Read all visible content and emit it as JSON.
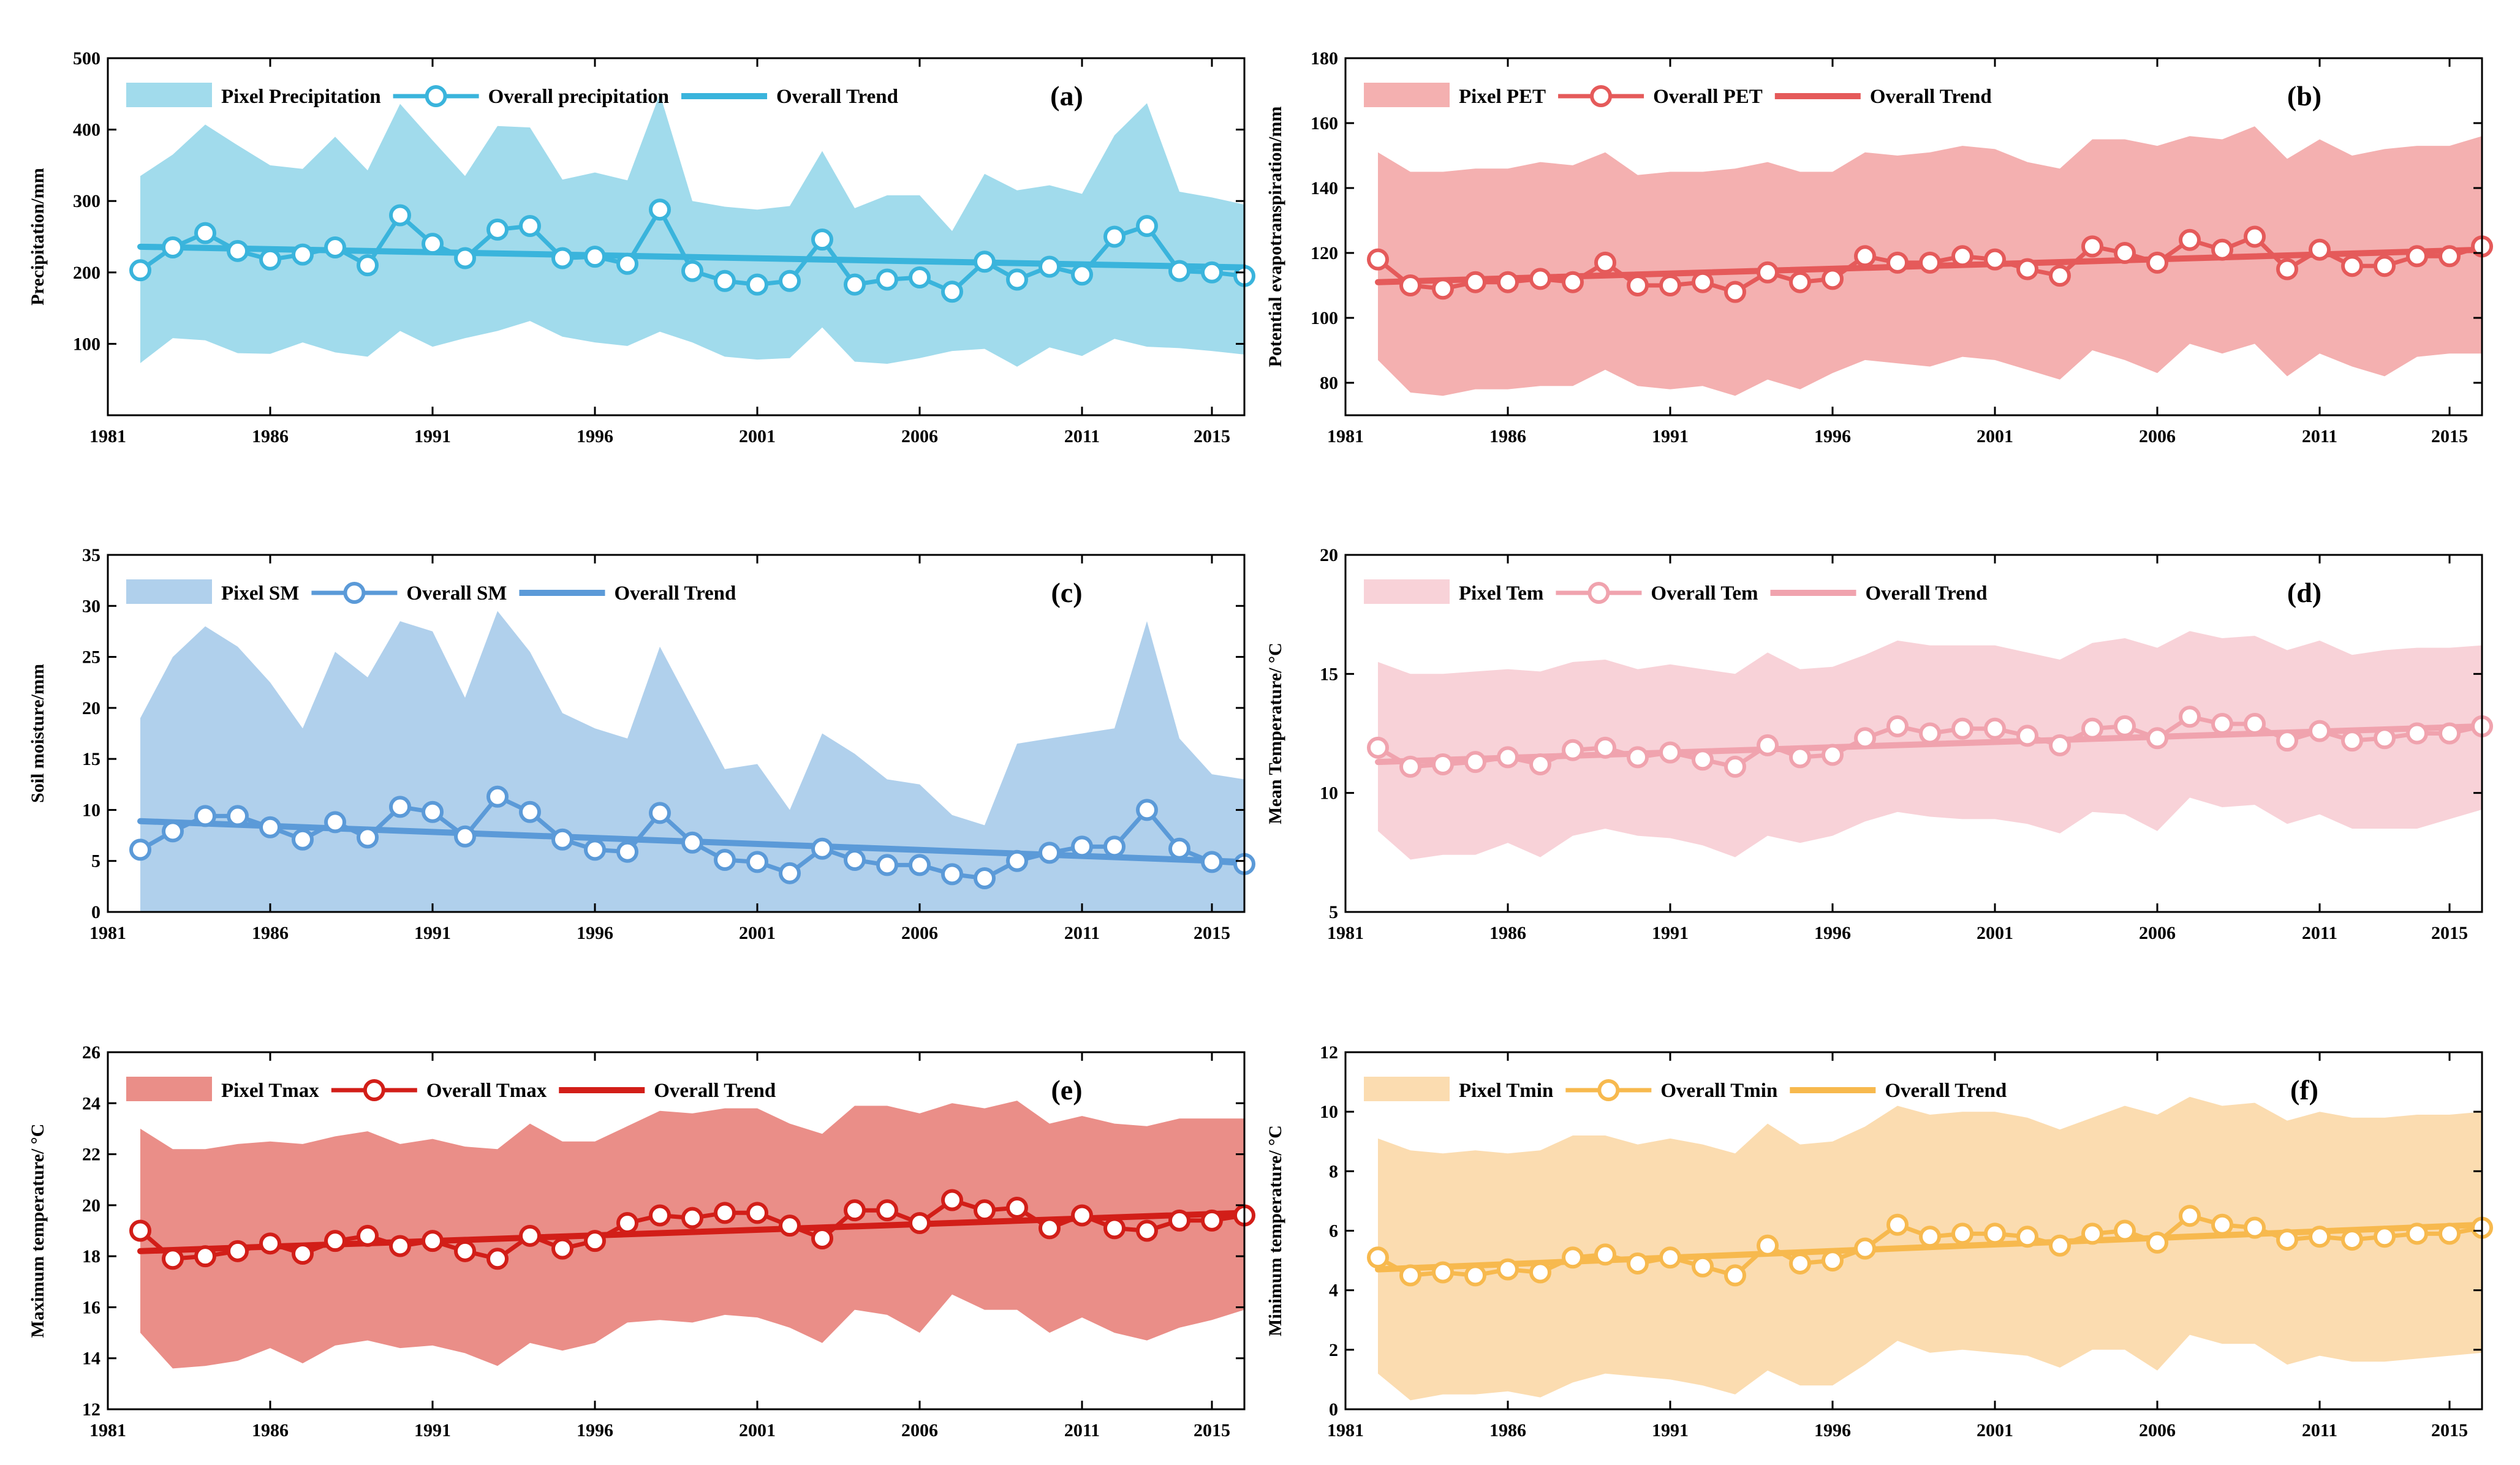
{
  "chart_data": [
    {
      "id": "a",
      "type": "line",
      "panel_label": "(a)",
      "ylabel": "Precipitation/mm",
      "xlabel": "",
      "ylim": [
        0,
        500
      ],
      "yticks": [
        100,
        200,
        300,
        400,
        500
      ],
      "ytick_labels": [
        "100",
        "200",
        "300",
        "400",
        "500"
      ],
      "xlim": [
        1981,
        2016
      ],
      "xticks": [
        1981,
        1986,
        1991,
        1996,
        2001,
        2006,
        2011,
        2015
      ],
      "xtick_labels": [
        "1981",
        "1986",
        "1991",
        "1996",
        "2001",
        "2006",
        "2011",
        "2015"
      ],
      "colors": {
        "band": "#a1dbec",
        "line": "#3ab4dc",
        "trend": "#3ab4dc"
      },
      "legend": {
        "band": "Pixel Precipitation",
        "line": "Overall precipitation",
        "trend": "Overall Trend"
      },
      "x": [
        1982,
        1983,
        1984,
        1985,
        1986,
        1987,
        1988,
        1989,
        1990,
        1991,
        1992,
        1993,
        1994,
        1995,
        1996,
        1997,
        1998,
        1999,
        2000,
        2001,
        2002,
        2003,
        2004,
        2005,
        2006,
        2007,
        2008,
        2009,
        2010,
        2011,
        2012,
        2013,
        2014,
        2015,
        2016
      ],
      "band_upper": [
        335,
        365,
        407,
        378,
        350,
        345,
        390,
        343,
        436,
        385,
        335,
        405,
        403,
        330,
        340,
        329,
        450,
        300,
        292,
        288,
        293,
        370,
        290,
        308,
        308,
        258,
        338,
        315,
        322,
        310,
        392,
        437,
        313,
        305,
        295
      ],
      "band_lower": [
        73,
        108,
        105,
        87,
        86,
        102,
        88,
        82,
        118,
        96,
        108,
        118,
        132,
        110,
        102,
        97,
        117,
        102,
        82,
        78,
        80,
        123,
        75,
        72,
        80,
        90,
        93,
        68,
        95,
        83,
        107,
        96,
        94,
        90,
        85
      ],
      "series": [
        {
          "name": "Overall precipitation",
          "values": [
            203,
            235,
            255,
            230,
            218,
            225,
            235,
            210,
            280,
            240,
            220,
            260,
            265,
            220,
            222,
            212,
            288,
            202,
            188,
            183,
            188,
            246,
            183,
            190,
            193,
            173,
            215,
            190,
            208,
            197,
            250,
            265,
            202,
            200,
            195
          ]
        }
      ],
      "trend": [
        236,
        207
      ]
    },
    {
      "id": "b",
      "type": "line",
      "panel_label": "(b)",
      "ylabel": "Potential evapotranspiration/mm",
      "xlabel": "",
      "ylim": [
        70,
        180
      ],
      "yticks": [
        80,
        100,
        120,
        140,
        160,
        180
      ],
      "ytick_labels": [
        "80",
        "100",
        "120",
        "140",
        "160",
        "180"
      ],
      "xlim": [
        1981,
        2016
      ],
      "xticks": [
        1981,
        1986,
        1991,
        1996,
        2001,
        2006,
        2011,
        2015
      ],
      "xtick_labels": [
        "1981",
        "1986",
        "1991",
        "1996",
        "2001",
        "2006",
        "2011",
        "2015"
      ],
      "colors": {
        "band": "#f4b0b0",
        "line": "#e55a5a",
        "trend": "#e55a5a"
      },
      "legend": {
        "band": "Pixel PET",
        "line": "Overall PET",
        "trend": "Overall Trend"
      },
      "x": [
        1982,
        1983,
        1984,
        1985,
        1986,
        1987,
        1988,
        1989,
        1990,
        1991,
        1992,
        1993,
        1994,
        1995,
        1996,
        1997,
        1998,
        1999,
        2000,
        2001,
        2002,
        2003,
        2004,
        2005,
        2006,
        2007,
        2008,
        2009,
        2010,
        2011,
        2012,
        2013,
        2014,
        2015,
        2016
      ],
      "band_upper": [
        151,
        145,
        145,
        146,
        146,
        148,
        147,
        151,
        144,
        145,
        145,
        146,
        148,
        145,
        145,
        151,
        150,
        151,
        153,
        152,
        148,
        146,
        155,
        155,
        153,
        156,
        155,
        159,
        149,
        155,
        150,
        152,
        153,
        153,
        156
      ],
      "band_lower": [
        87,
        77,
        76,
        78,
        78,
        79,
        79,
        84,
        79,
        78,
        79,
        76,
        81,
        78,
        83,
        87,
        86,
        85,
        88,
        87,
        84,
        81,
        90,
        87,
        83,
        92,
        89,
        92,
        82,
        89,
        85,
        82,
        88,
        89,
        89
      ],
      "series": [
        {
          "name": "Overall PET",
          "values": [
            118,
            110,
            109,
            111,
            111,
            112,
            111,
            117,
            110,
            110,
            111,
            108,
            114,
            111,
            112,
            119,
            117,
            117,
            119,
            118,
            115,
            113,
            122,
            120,
            117,
            124,
            121,
            125,
            115,
            121,
            116,
            116,
            119,
            119,
            122
          ]
        }
      ],
      "trend": [
        111,
        121
      ]
    },
    {
      "id": "c",
      "type": "line",
      "panel_label": "(c)",
      "ylabel": "Soil moisture/mm",
      "xlabel": "",
      "ylim": [
        0,
        35
      ],
      "yticks": [
        0,
        5,
        10,
        15,
        20,
        25,
        30,
        35
      ],
      "ytick_labels": [
        "0",
        "5",
        "10",
        "15",
        "20",
        "25",
        "30",
        "35"
      ],
      "xlim": [
        1981,
        2016
      ],
      "xticks": [
        1981,
        1986,
        1991,
        1996,
        2001,
        2006,
        2011,
        2015
      ],
      "xtick_labels": [
        "1981",
        "1986",
        "1991",
        "1996",
        "2001",
        "2006",
        "2011",
        "2015"
      ],
      "colors": {
        "band": "#b0d0ec",
        "line": "#5b9ad8",
        "trend": "#5b9ad8"
      },
      "legend": {
        "band": "Pixel SM",
        "line": "Overall SM",
        "trend": "Overall Trend"
      },
      "x": [
        1982,
        1983,
        1984,
        1985,
        1986,
        1987,
        1988,
        1989,
        1990,
        1991,
        1992,
        1993,
        1994,
        1995,
        1996,
        1997,
        1998,
        1999,
        2000,
        2001,
        2002,
        2003,
        2004,
        2005,
        2006,
        2007,
        2008,
        2009,
        2010,
        2011,
        2012,
        2013,
        2014,
        2015,
        2016
      ],
      "band_upper": [
        19,
        25,
        28,
        26,
        22.5,
        18,
        25.5,
        23,
        28.5,
        27.5,
        21,
        29.5,
        25.5,
        19.5,
        18,
        17,
        26,
        20,
        14,
        14.5,
        10,
        17.5,
        15.5,
        13,
        12.5,
        9.5,
        8.5,
        16.5,
        17,
        17.5,
        18,
        28.5,
        17,
        13.5,
        13
      ],
      "band_lower": [
        0,
        0,
        0,
        0,
        0,
        0,
        0,
        0,
        0,
        0,
        0,
        0,
        0,
        0,
        0,
        0,
        0,
        0,
        0,
        0,
        0,
        0,
        0,
        0,
        0,
        0,
        0,
        0,
        0,
        0,
        0,
        0,
        0,
        0,
        0
      ],
      "series": [
        {
          "name": "Overall SM",
          "values": [
            6.1,
            7.9,
            9.4,
            9.4,
            8.3,
            7.1,
            8.8,
            7.3,
            10.3,
            9.8,
            7.4,
            11.3,
            9.8,
            7.1,
            6.1,
            5.9,
            9.7,
            6.8,
            5.1,
            4.9,
            3.8,
            6.2,
            5.1,
            4.6,
            4.6,
            3.7,
            3.3,
            5.0,
            5.8,
            6.4,
            6.4,
            10.0,
            6.2,
            4.9,
            4.7
          ]
        }
      ],
      "trend": [
        8.9,
        4.9
      ]
    },
    {
      "id": "d",
      "type": "line",
      "panel_label": "(d)",
      "ylabel": "Mean Temperature/ °C",
      "xlabel": "",
      "ylim": [
        5,
        20
      ],
      "yticks": [
        5,
        10,
        15,
        20
      ],
      "ytick_labels": [
        "5",
        "10",
        "15",
        "20"
      ],
      "xlim": [
        1981,
        2016
      ],
      "xticks": [
        1981,
        1986,
        1991,
        1996,
        2001,
        2006,
        2011,
        2015
      ],
      "xtick_labels": [
        "1981",
        "1986",
        "1991",
        "1996",
        "2001",
        "2006",
        "2011",
        "2015"
      ],
      "colors": {
        "band": "#f8d2d8",
        "line": "#f0a3ae",
        "trend": "#f0a3ae"
      },
      "legend": {
        "band": "Pixel Tem",
        "line": "Overall Tem",
        "trend": "Overall Trend"
      },
      "x": [
        1982,
        1983,
        1984,
        1985,
        1986,
        1987,
        1988,
        1989,
        1990,
        1991,
        1992,
        1993,
        1994,
        1995,
        1996,
        1997,
        1998,
        1999,
        2000,
        2001,
        2002,
        2003,
        2004,
        2005,
        2006,
        2007,
        2008,
        2009,
        2010,
        2011,
        2012,
        2013,
        2014,
        2015,
        2016
      ],
      "band_upper": [
        15.5,
        15,
        15,
        15.1,
        15.2,
        15.1,
        15.5,
        15.6,
        15.2,
        15.4,
        15.2,
        15,
        15.9,
        15.2,
        15.3,
        15.8,
        16.4,
        16.2,
        16.2,
        16.2,
        15.9,
        15.6,
        16.3,
        16.5,
        16.1,
        16.8,
        16.5,
        16.6,
        16,
        16.4,
        15.8,
        16,
        16.1,
        16.1,
        16.2
      ],
      "band_lower": [
        8.4,
        7.2,
        7.4,
        7.4,
        7.9,
        7.3,
        8.2,
        8.5,
        8.2,
        8.1,
        7.8,
        7.3,
        8.2,
        7.9,
        8.2,
        8.8,
        9.2,
        9,
        8.9,
        8.9,
        8.7,
        8.3,
        9.2,
        9.1,
        8.4,
        9.8,
        9.4,
        9.5,
        8.7,
        9.1,
        8.5,
        8.5,
        8.5,
        8.9,
        9.3
      ],
      "series": [
        {
          "name": "Overall Tem",
          "values": [
            11.9,
            11.1,
            11.2,
            11.3,
            11.5,
            11.2,
            11.8,
            11.9,
            11.5,
            11.7,
            11.4,
            11.1,
            12,
            11.5,
            11.6,
            12.3,
            12.8,
            12.5,
            12.7,
            12.7,
            12.4,
            12,
            12.7,
            12.8,
            12.3,
            13.2,
            12.9,
            12.9,
            12.2,
            12.6,
            12.2,
            12.3,
            12.5,
            12.5,
            12.8
          ]
        }
      ],
      "trend": [
        11.3,
        12.8
      ]
    },
    {
      "id": "e",
      "type": "line",
      "panel_label": "(e)",
      "ylabel": "Maximum temperature/ °C",
      "xlabel": "",
      "ylim": [
        12,
        26
      ],
      "yticks": [
        12,
        14,
        16,
        18,
        20,
        22,
        24,
        26
      ],
      "ytick_labels": [
        "12",
        "14",
        "16",
        "18",
        "20",
        "22",
        "24",
        "26"
      ],
      "xlim": [
        1981,
        2016
      ],
      "xticks": [
        1981,
        1986,
        1991,
        1996,
        2001,
        2006,
        2011,
        2015
      ],
      "xtick_labels": [
        "1981",
        "1986",
        "1991",
        "1996",
        "2001",
        "2006",
        "2011",
        "2015"
      ],
      "colors": {
        "band": "#ea8e88",
        "line": "#d21e18",
        "trend": "#d21e18"
      },
      "legend": {
        "band": "Pixel Tmax",
        "line": "Overall Tmax",
        "trend": "Overall Trend"
      },
      "x": [
        1982,
        1983,
        1984,
        1985,
        1986,
        1987,
        1988,
        1989,
        1990,
        1991,
        1992,
        1993,
        1994,
        1995,
        1996,
        1997,
        1998,
        1999,
        2000,
        2001,
        2002,
        2003,
        2004,
        2005,
        2006,
        2007,
        2008,
        2009,
        2010,
        2011,
        2012,
        2013,
        2014,
        2015,
        2016
      ],
      "band_upper": [
        23,
        22.2,
        22.2,
        22.4,
        22.5,
        22.4,
        22.7,
        22.9,
        22.4,
        22.6,
        22.3,
        22.2,
        23.2,
        22.5,
        22.5,
        23.1,
        23.7,
        23.6,
        23.8,
        23.8,
        23.2,
        22.8,
        23.9,
        23.9,
        23.6,
        24,
        23.8,
        24.1,
        23.2,
        23.5,
        23.2,
        23.1,
        23.4,
        23.4,
        23.4
      ],
      "band_lower": [
        15,
        13.6,
        13.7,
        13.9,
        14.4,
        13.8,
        14.5,
        14.7,
        14.4,
        14.5,
        14.2,
        13.7,
        14.6,
        14.3,
        14.6,
        15.4,
        15.5,
        15.4,
        15.7,
        15.6,
        15.2,
        14.6,
        15.9,
        15.7,
        15,
        16.5,
        15.9,
        15.9,
        15,
        15.6,
        15,
        14.7,
        15.2,
        15.5,
        15.9
      ],
      "series": [
        {
          "name": "Overall Tmax",
          "values": [
            19,
            17.9,
            18,
            18.2,
            18.5,
            18.1,
            18.6,
            18.8,
            18.4,
            18.6,
            18.2,
            17.9,
            18.8,
            18.3,
            18.6,
            19.3,
            19.6,
            19.5,
            19.7,
            19.7,
            19.2,
            18.7,
            19.8,
            19.8,
            19.3,
            20.2,
            19.8,
            19.9,
            19.1,
            19.6,
            19.1,
            19,
            19.4,
            19.4,
            19.6
          ]
        }
      ],
      "trend": [
        18.2,
        19.7
      ]
    },
    {
      "id": "f",
      "type": "line",
      "panel_label": "(f)",
      "ylabel": "Minimum temperature/ °C",
      "xlabel": "",
      "ylim": [
        0,
        12
      ],
      "yticks": [
        0,
        2,
        4,
        6,
        8,
        10,
        12
      ],
      "ytick_labels": [
        "0",
        "2",
        "4",
        "6",
        "8",
        "10",
        "12"
      ],
      "xlim": [
        1981,
        2016
      ],
      "xticks": [
        1981,
        1986,
        1991,
        1996,
        2001,
        2006,
        2011,
        2015
      ],
      "xtick_labels": [
        "1981",
        "1986",
        "1991",
        "1996",
        "2001",
        "2006",
        "2011",
        "2015"
      ],
      "colors": {
        "band": "#fbdcb0",
        "line": "#f7b94e",
        "trend": "#f7b94e"
      },
      "legend": {
        "band": "Pixel Tmin",
        "line": "Overall Tmin",
        "trend": "Overall Trend"
      },
      "x": [
        1982,
        1983,
        1984,
        1985,
        1986,
        1987,
        1988,
        1989,
        1990,
        1991,
        1992,
        1993,
        1994,
        1995,
        1996,
        1997,
        1998,
        1999,
        2000,
        2001,
        2002,
        2003,
        2004,
        2005,
        2006,
        2007,
        2008,
        2009,
        2010,
        2011,
        2012,
        2013,
        2014,
        2015,
        2016
      ],
      "band_upper": [
        9.1,
        8.7,
        8.6,
        8.7,
        8.6,
        8.7,
        9.2,
        9.2,
        8.9,
        9.1,
        8.9,
        8.6,
        9.6,
        8.9,
        9,
        9.5,
        10.2,
        9.9,
        10,
        10,
        9.8,
        9.4,
        9.8,
        10.2,
        9.9,
        10.5,
        10.2,
        10.3,
        9.7,
        10,
        9.8,
        9.8,
        9.9,
        9.9,
        10
      ],
      "band_lower": [
        1.2,
        0.3,
        0.5,
        0.5,
        0.6,
        0.4,
        0.9,
        1.2,
        1.1,
        1,
        0.8,
        0.5,
        1.3,
        0.8,
        0.8,
        1.5,
        2.3,
        1.9,
        2,
        1.9,
        1.8,
        1.4,
        2,
        2,
        1.3,
        2.5,
        2.2,
        2.2,
        1.5,
        1.8,
        1.6,
        1.6,
        1.7,
        1.8,
        1.9
      ],
      "series": [
        {
          "name": "Overall Tmin",
          "values": [
            5.1,
            4.5,
            4.6,
            4.5,
            4.7,
            4.6,
            5.1,
            5.2,
            4.9,
            5.1,
            4.8,
            4.5,
            5.5,
            4.9,
            5,
            5.4,
            6.2,
            5.8,
            5.9,
            5.9,
            5.8,
            5.5,
            5.9,
            6,
            5.6,
            6.5,
            6.2,
            6.1,
            5.7,
            5.8,
            5.7,
            5.8,
            5.9,
            5.9,
            6.1
          ]
        }
      ],
      "trend": [
        4.7,
        6.2
      ]
    }
  ]
}
